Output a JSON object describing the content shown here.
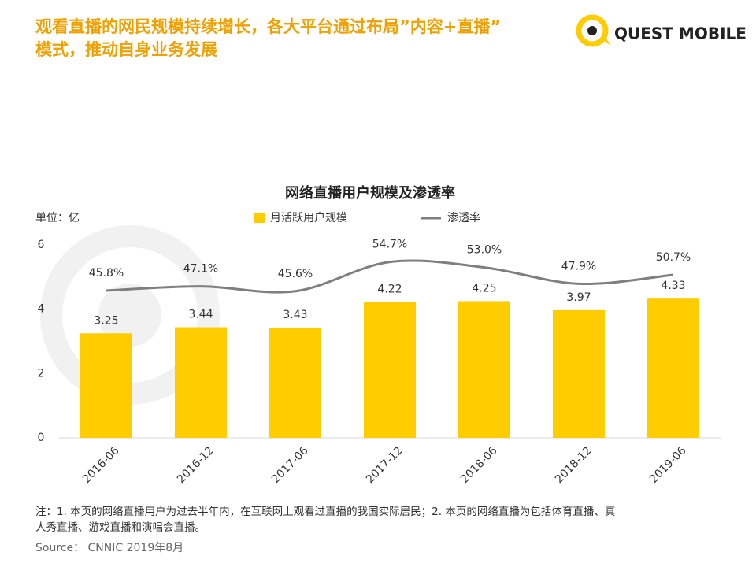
{
  "header": {
    "title_lines": [
      "观看直播的网民规模持续增长，各大平台通过布局”内容+直播”",
      "模式，推动自身业务发展"
    ],
    "logo": "QUEST MOBILE"
  },
  "chart_data": {
    "type": "bar",
    "title": "网络直播用户规模及渗透率",
    "y_label": "单位：亿",
    "categories": [
      "2016-06",
      "2016-12",
      "2017-06",
      "2017-12",
      "2018-06",
      "2018-12",
      "2019-06"
    ],
    "series": [
      {
        "name": "月活跃用户规模",
        "type": "bar",
        "color": "#FFCC00",
        "values": [
          3.25,
          3.44,
          3.43,
          4.22,
          4.25,
          3.97,
          4.33
        ]
      },
      {
        "name": "渗透率",
        "type": "line",
        "axis": "y2",
        "color": "#7F7F7F",
        "values": [
          45.8,
          47.1,
          45.6,
          54.7,
          53.0,
          47.9,
          50.7
        ],
        "value_labels": [
          "45.8%",
          "47.1%",
          "45.6%",
          "54.7%",
          "53.0%",
          "47.9%",
          "50.7%"
        ]
      }
    ],
    "ylim": [
      0,
      6
    ],
    "yticks": [
      0,
      2,
      4,
      6
    ],
    "y2lim": [
      0,
      60
    ],
    "smooth": true
  },
  "notes": [
    "注：1. 本页的网络直播用户为过去半年内，在互联网上观看过直播的我国实际居民；2. 本页的网络直播为包括体育直播、真",
    "人秀直播、游戏直播和演唱会直播。"
  ],
  "source": "Source： CNNIC 2019年8月"
}
